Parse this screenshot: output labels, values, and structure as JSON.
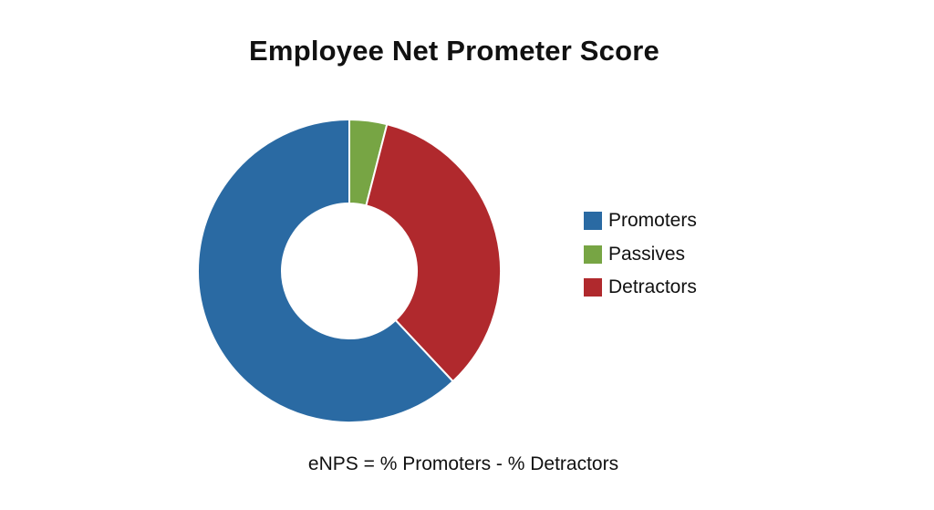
{
  "chart_data": {
    "type": "pie",
    "title": "Employee Net Prometer Score",
    "categories": [
      "Promoters",
      "Passives",
      "Detractors"
    ],
    "values": [
      62,
      4,
      34
    ],
    "colors": [
      "#2a6aa3",
      "#77a544",
      "#b0292d"
    ],
    "legend_position": "right",
    "donut": true,
    "footnote": "eNPS = % Promoters - % Detractors"
  }
}
